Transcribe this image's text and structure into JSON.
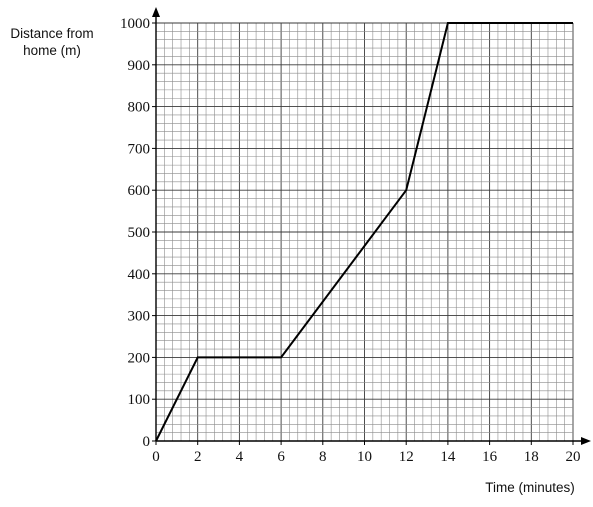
{
  "chart_data": {
    "type": "line",
    "ylabel_lines": [
      "Distance from",
      "home (m)"
    ],
    "xlabel": "Time (minutes)",
    "xlim": [
      0,
      20
    ],
    "ylim": [
      0,
      1000
    ],
    "x_ticks": [
      "0",
      "2",
      "4",
      "6",
      "8",
      "10",
      "12",
      "14",
      "16",
      "18",
      "20"
    ],
    "y_ticks": [
      "0",
      "100",
      "200",
      "300",
      "400",
      "500",
      "600",
      "700",
      "800",
      "900",
      "1000"
    ],
    "grid": true,
    "series": [
      {
        "x": [
          0,
          2,
          6,
          12,
          14,
          20
        ],
        "y": [
          0,
          200,
          200,
          600,
          1000,
          1000
        ]
      }
    ]
  }
}
